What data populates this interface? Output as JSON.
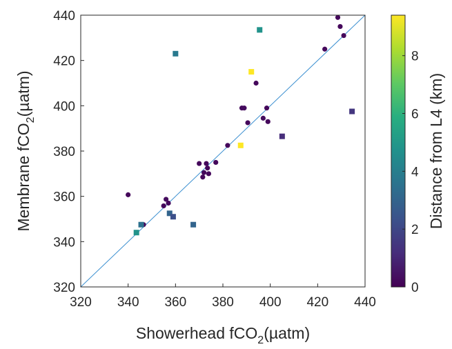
{
  "chart_data": {
    "type": "scatter",
    "xlabel": {
      "main": "Showerhead fCO",
      "sub": "2",
      "unit": "(µatm)"
    },
    "ylabel": {
      "main": "Membrane fCO",
      "sub": "2",
      "unit": "(µatm)"
    },
    "xlim": [
      320,
      440
    ],
    "ylim": [
      320,
      440
    ],
    "xticks": [
      320,
      340,
      360,
      380,
      400,
      420,
      440
    ],
    "yticks": [
      320,
      340,
      360,
      380,
      400,
      420,
      440
    ],
    "grid": false,
    "reference_line": {
      "type": "1:1",
      "color": "#3a8fd0"
    },
    "colorbar": {
      "label": "Distance from L4 (km)",
      "range": [
        0,
        9.4
      ],
      "ticks": [
        0,
        2,
        4,
        6,
        8
      ],
      "colormap": "viridis",
      "placement": "right"
    },
    "series": [
      {
        "marker": "circle",
        "points": [
          [
            340,
            360.7,
            0.2
          ],
          [
            346.5,
            347.5,
            0.2
          ],
          [
            355,
            355.8,
            0.2
          ],
          [
            356,
            358.7,
            0.3
          ],
          [
            357,
            357,
            0.2
          ],
          [
            370,
            374.5,
            0.2
          ],
          [
            371.5,
            368.5,
            0.2
          ],
          [
            372,
            370.5,
            0.2
          ],
          [
            373,
            374.5,
            0.2
          ],
          [
            373.5,
            372.5,
            0.2
          ],
          [
            374,
            370,
            0.2
          ],
          [
            377,
            375,
            0.2
          ],
          [
            382,
            382.5,
            0.2
          ],
          [
            388,
            399,
            0.3
          ],
          [
            389,
            399,
            0.3
          ],
          [
            390.5,
            392.5,
            0.2
          ],
          [
            394,
            410,
            0.2
          ],
          [
            397,
            394.5,
            0.3
          ],
          [
            398.5,
            399,
            0.2
          ],
          [
            399,
            393,
            0.2
          ],
          [
            423,
            425,
            0.2
          ],
          [
            428.5,
            439,
            0.2
          ],
          [
            429.5,
            435,
            0.2
          ],
          [
            431,
            431,
            0.2
          ]
        ]
      },
      {
        "marker": "square",
        "points": [
          [
            343.5,
            344,
            4.8
          ],
          [
            345.5,
            347.5,
            3.5
          ],
          [
            357.5,
            352.5,
            3.0
          ],
          [
            359,
            351,
            2.3
          ],
          [
            360,
            423,
            3.8
          ],
          [
            367.5,
            347.5,
            3.0
          ],
          [
            387.5,
            382.5,
            9.4
          ],
          [
            392,
            415,
            9.4
          ],
          [
            395.5,
            433.5,
            4.8
          ],
          [
            405,
            386.5,
            1.2
          ],
          [
            434.5,
            397.5,
            1.5
          ]
        ]
      }
    ]
  }
}
